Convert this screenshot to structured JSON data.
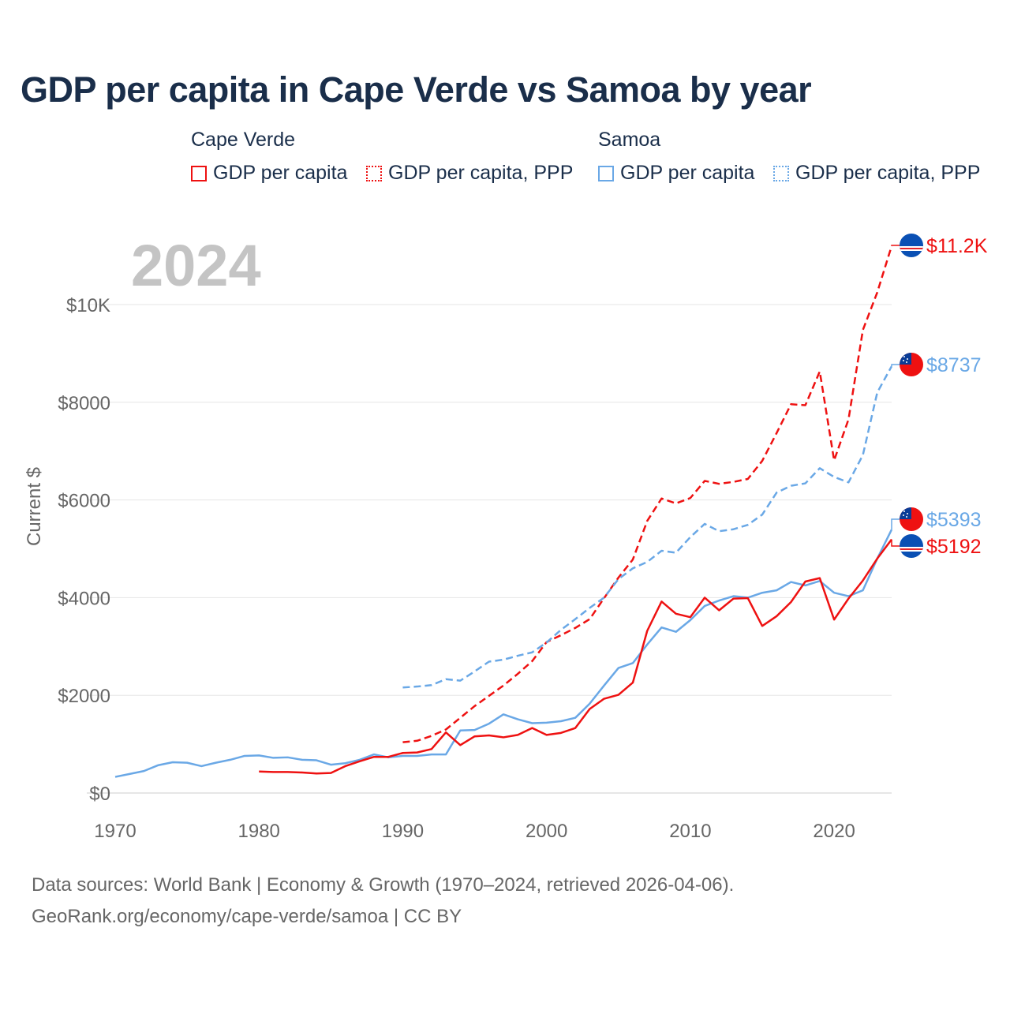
{
  "title": "GDP per capita in Cape Verde vs Samoa by year",
  "legend": {
    "groups": [
      {
        "name": "Cape Verde",
        "items": [
          "GDP per capita",
          "GDP per capita, PPP"
        ],
        "color": "#ee1111"
      },
      {
        "name": "Samoa",
        "items": [
          "GDP per capita",
          "GDP per capita, PPP"
        ],
        "color": "#6aa8e6"
      }
    ]
  },
  "footer": {
    "line1": "Data sources: World Bank | Economy & Growth (1970–2024, retrieved 2026-04-06).",
    "line2": "GeoRank.org/economy/cape-verde/samoa | CC BY"
  },
  "chart_data": {
    "type": "line",
    "title": "GDP per capita in Cape Verde vs Samoa by year",
    "year_label": "2024",
    "xlabel": "",
    "ylabel": "Current $",
    "xlim": [
      1970,
      2024
    ],
    "ylim": [
      0,
      11200
    ],
    "x_ticks": [
      1970,
      1980,
      1990,
      2000,
      2010,
      2020
    ],
    "y_ticks": [
      {
        "v": 0,
        "label": "$0"
      },
      {
        "v": 2000,
        "label": "$2000"
      },
      {
        "v": 4000,
        "label": "$4000"
      },
      {
        "v": 6000,
        "label": "$6000"
      },
      {
        "v": 8000,
        "label": "$8000"
      },
      {
        "v": 10000,
        "label": "$10K"
      }
    ],
    "grid": true,
    "series": [
      {
        "name": "Cape Verde GDP per capita, PPP",
        "color": "#ee1111",
        "dash": true,
        "start": 1990,
        "end_label": "$11.2K",
        "flag": "cape-verde",
        "values": [
          1040,
          1070,
          1170,
          1300,
          1540,
          1780,
          1990,
          2200,
          2440,
          2700,
          3090,
          3230,
          3380,
          3560,
          3990,
          4410,
          4780,
          5570,
          6030,
          5930,
          6040,
          6390,
          6330,
          6370,
          6430,
          6800,
          7370,
          7960,
          7940,
          8630,
          6810,
          7650,
          9480,
          10250,
          11200
        ]
      },
      {
        "name": "Samoa GDP per capita, PPP",
        "color": "#6aa8e6",
        "dash": true,
        "start": 1990,
        "end_label": "$8737",
        "flag": "samoa",
        "values": [
          2160,
          2180,
          2210,
          2330,
          2300,
          2490,
          2690,
          2730,
          2810,
          2880,
          3080,
          3340,
          3560,
          3790,
          4000,
          4380,
          4600,
          4730,
          4960,
          4920,
          5240,
          5510,
          5360,
          5400,
          5490,
          5700,
          6150,
          6290,
          6340,
          6650,
          6470,
          6360,
          6920,
          8200,
          8737
        ]
      },
      {
        "name": "Samoa GDP per capita",
        "color": "#6aa8e6",
        "dash": false,
        "start": 1970,
        "end_label": "$5393",
        "flag": "samoa",
        "values": [
          330,
          390,
          450,
          570,
          630,
          620,
          550,
          620,
          680,
          760,
          770,
          720,
          730,
          680,
          670,
          580,
          610,
          680,
          790,
          730,
          760,
          760,
          790,
          790,
          1280,
          1290,
          1420,
          1610,
          1510,
          1430,
          1440,
          1470,
          1540,
          1830,
          2200,
          2560,
          2660,
          3040,
          3390,
          3300,
          3540,
          3830,
          3940,
          4030,
          4000,
          4100,
          4150,
          4320,
          4250,
          4340,
          4100,
          4030,
          4150,
          4800,
          5393
        ]
      },
      {
        "name": "Cape Verde GDP per capita",
        "color": "#ee1111",
        "dash": false,
        "start": 1980,
        "end_label": "$5192",
        "flag": "cape-verde",
        "values": [
          440,
          430,
          430,
          420,
          400,
          410,
          550,
          650,
          740,
          740,
          820,
          830,
          900,
          1240,
          980,
          1160,
          1180,
          1140,
          1190,
          1330,
          1190,
          1230,
          1330,
          1720,
          1930,
          2010,
          2260,
          3320,
          3920,
          3670,
          3600,
          4000,
          3740,
          3980,
          3990,
          3420,
          3620,
          3910,
          4330,
          4400,
          3550,
          3980,
          4350,
          4800,
          5192
        ]
      }
    ]
  }
}
